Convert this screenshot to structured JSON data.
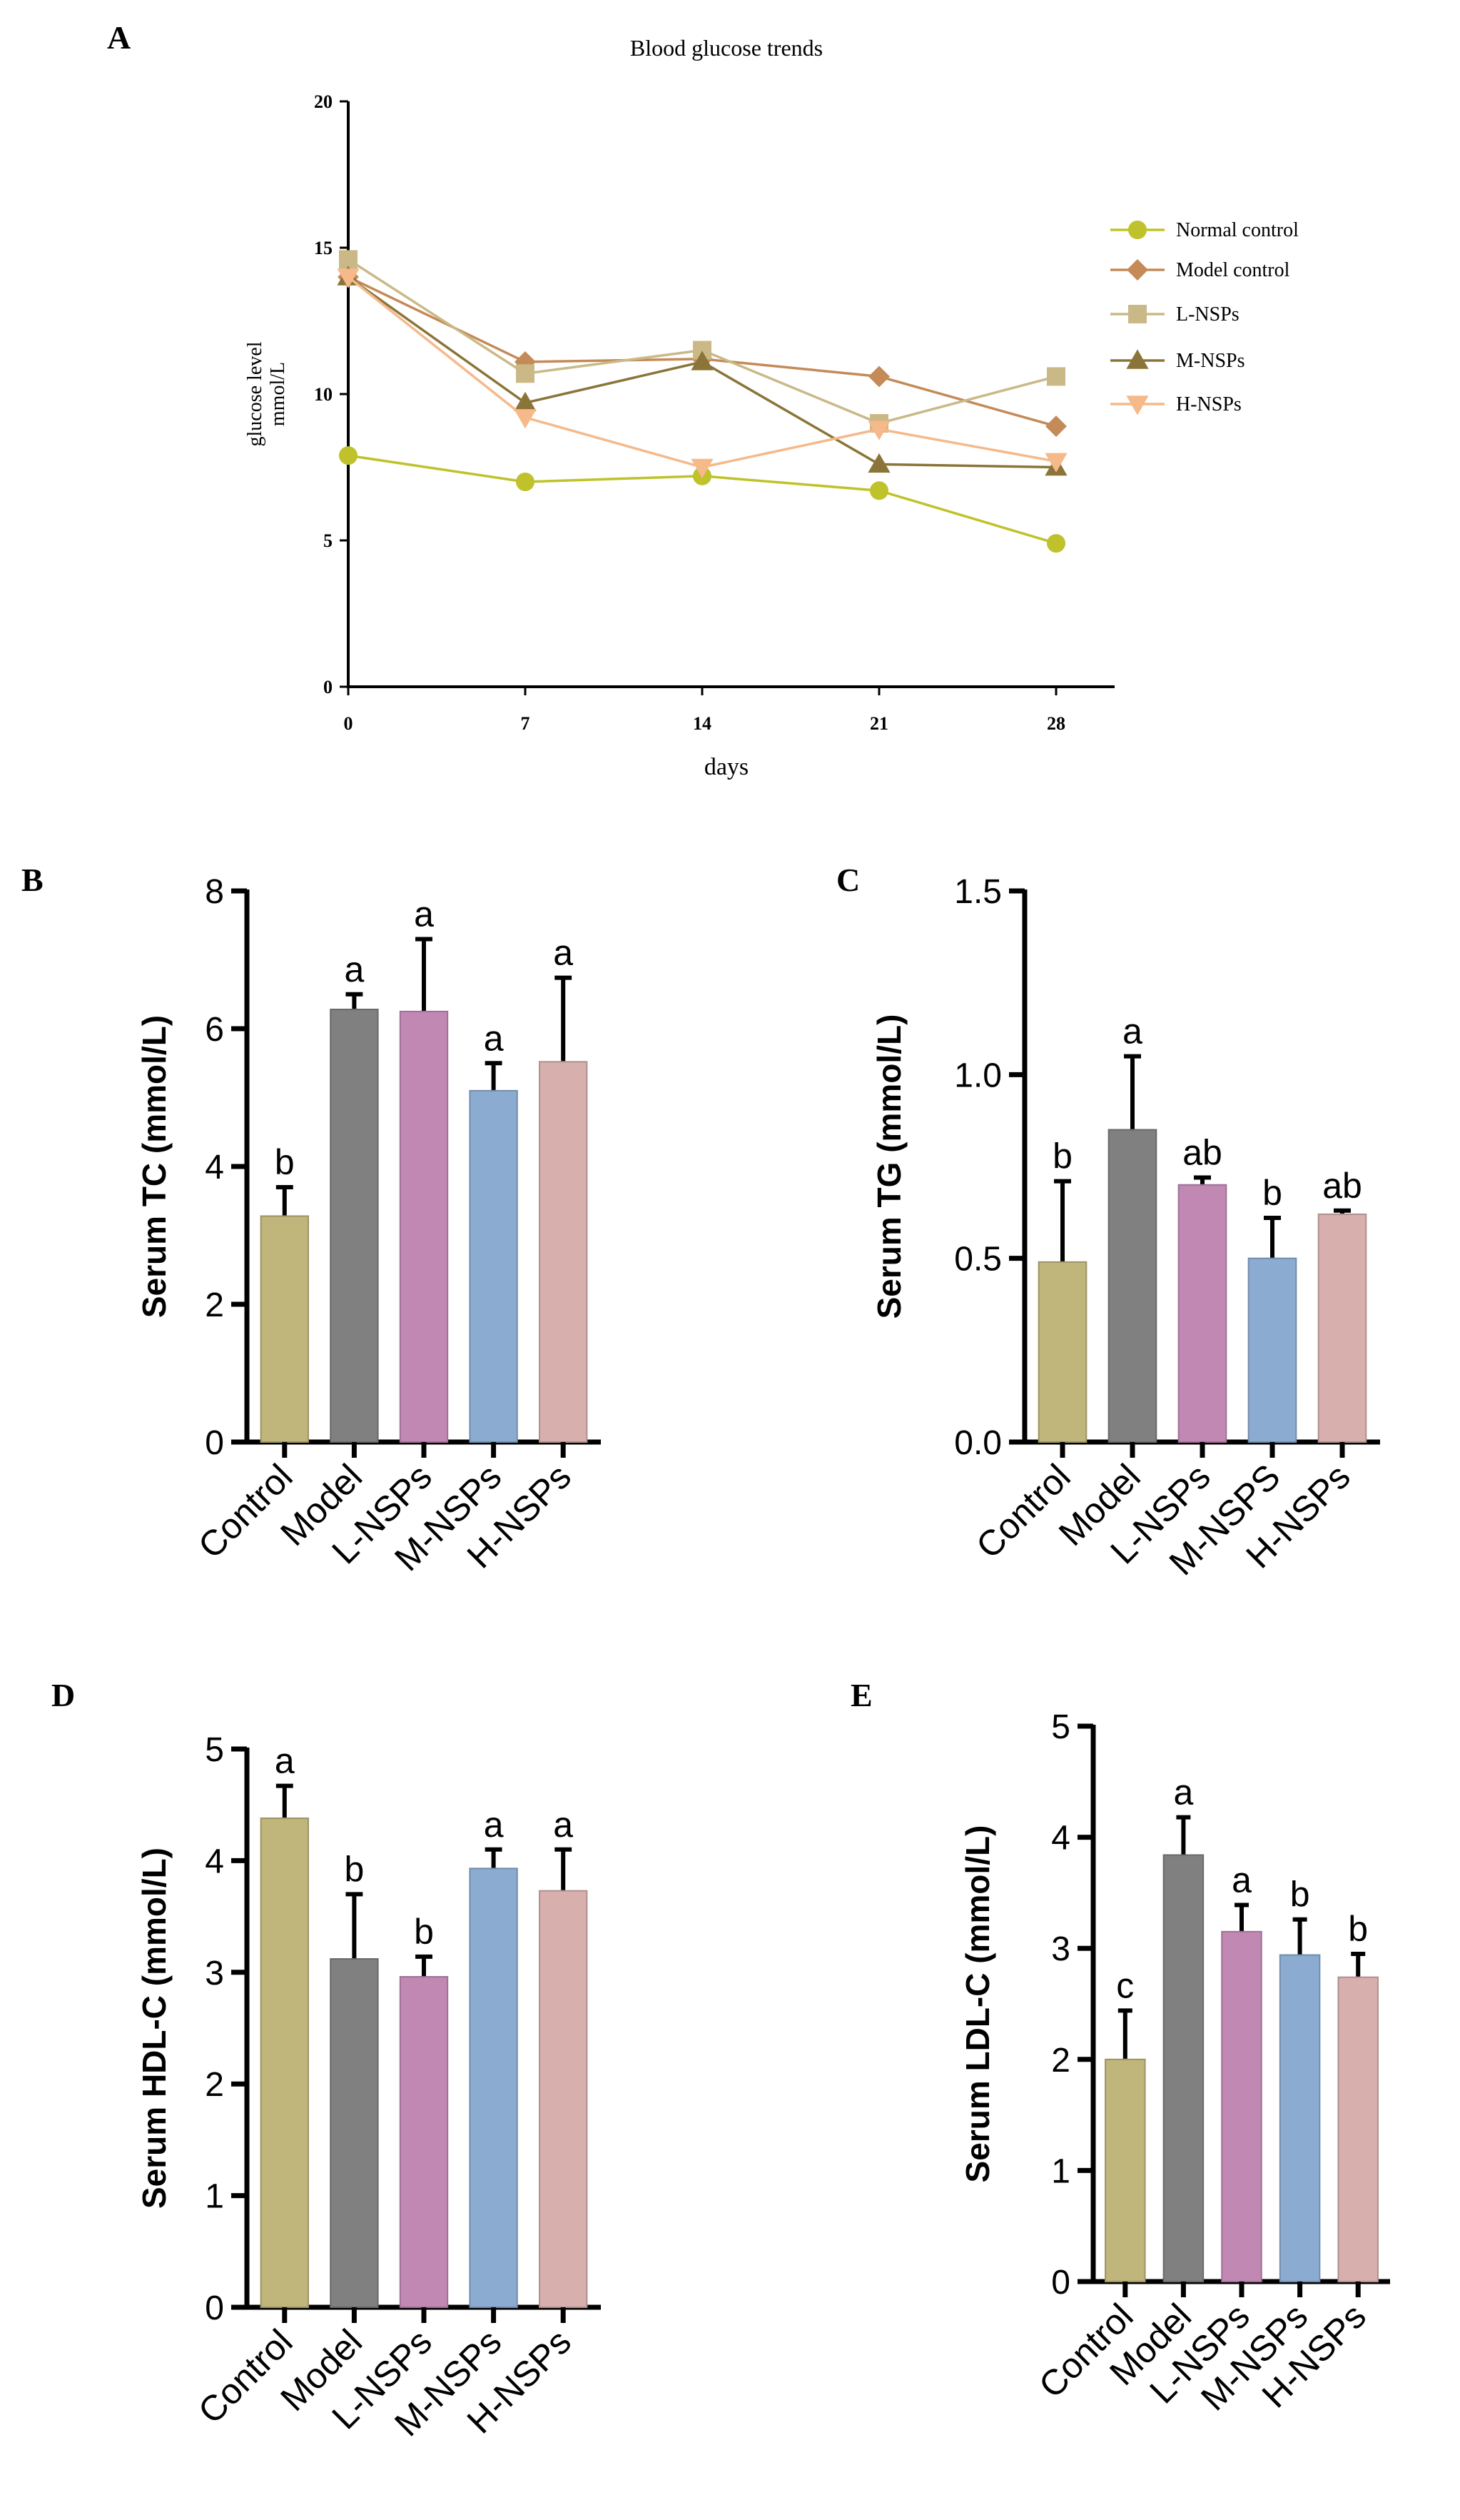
{
  "chart_data": [
    {
      "panel": "A",
      "type": "line",
      "title": "Blood glucose trends",
      "xlabel": "days",
      "ylabel_lines": [
        "glucose level",
        "mmol/L"
      ],
      "x": [
        0,
        7,
        14,
        21,
        28
      ],
      "x_tick_labels": [
        "0",
        "7",
        "14",
        "21",
        "28"
      ],
      "ylim": [
        0,
        20
      ],
      "y_ticks": [
        0,
        5,
        10,
        15,
        20
      ],
      "y_tick_labels": [
        "0",
        "5",
        "10",
        "15",
        "20"
      ],
      "legend_position": "right",
      "series": [
        {
          "name": "Normal control",
          "marker": "circle",
          "color": "#bfc22a",
          "values": [
            7.9,
            7.0,
            7.2,
            6.7,
            4.9
          ]
        },
        {
          "name": " Model control",
          "marker": "diamond",
          "color": "#c48a57",
          "values": [
            14.0,
            11.1,
            11.2,
            10.6,
            8.9
          ]
        },
        {
          "name": "L-NSPs",
          "marker": "square",
          "color": "#cab987",
          "values": [
            14.6,
            10.7,
            11.5,
            9.0,
            10.6
          ]
        },
        {
          "name": "M-NSPs",
          "marker": "triangle-up",
          "color": "#8a7438",
          "values": [
            14.0,
            9.7,
            11.1,
            7.6,
            7.5
          ]
        },
        {
          "name": "H-NSPs",
          "marker": "triangle-down",
          "color": "#f5b98a",
          "values": [
            14.0,
            9.2,
            7.5,
            8.8,
            7.7
          ]
        }
      ]
    },
    {
      "panel": "B",
      "type": "bar",
      "ylabel": "Serum TC (mmol/L)",
      "categories": [
        "Control",
        "Model",
        "L-NSPs",
        "M-NSPs",
        "H-NSPs"
      ],
      "values": [
        3.28,
        6.28,
        6.25,
        5.1,
        5.52
      ],
      "errors": [
        0.42,
        0.22,
        1.05,
        0.4,
        1.22
      ],
      "sig_labels": [
        "b",
        "a",
        "a",
        "a",
        "a"
      ],
      "ylim": [
        0,
        8
      ],
      "y_ticks": [
        0,
        2,
        4,
        6,
        8
      ],
      "y_tick_labels": [
        "0",
        "2",
        "4",
        "6",
        "8"
      ]
    },
    {
      "panel": "C",
      "type": "bar",
      "ylabel": "Serum TG (mmol/L)",
      "categories": [
        "Control",
        "Model",
        "L-NSPs",
        "M-NSPS",
        "H-NSPs"
      ],
      "values": [
        0.49,
        0.85,
        0.7,
        0.5,
        0.62
      ],
      "errors": [
        0.22,
        0.2,
        0.02,
        0.11,
        0.01
      ],
      "sig_labels": [
        "b",
        "a",
        "ab",
        "b",
        "ab"
      ],
      "ylim": [
        0,
        1.5
      ],
      "y_ticks": [
        0,
        0.5,
        1.0,
        1.5
      ],
      "y_tick_labels": [
        "0.0",
        "0.5",
        "1.0",
        "1.5"
      ]
    },
    {
      "panel": "D",
      "type": "bar",
      "ylabel": "Serum HDL-C (mmol/L)",
      "categories": [
        "Control",
        "Model",
        "L-NSPs",
        "M-NSPs",
        "H-NSPs"
      ],
      "values": [
        4.38,
        3.12,
        2.96,
        3.93,
        3.73
      ],
      "errors": [
        0.29,
        0.58,
        0.18,
        0.17,
        0.37
      ],
      "sig_labels": [
        "a",
        "b",
        "b",
        "a",
        "a"
      ],
      "ylim": [
        0,
        5
      ],
      "y_ticks": [
        0,
        1,
        2,
        3,
        4,
        5
      ],
      "y_tick_labels": [
        "0",
        "1",
        "2",
        "3",
        "4",
        "5"
      ]
    },
    {
      "panel": "E",
      "type": "bar",
      "ylabel": "Serum LDL-C (mmol/L)",
      "categories": [
        "Control",
        "Model",
        "L-NSPs",
        "M-NSPs",
        "H-NSPs"
      ],
      "values": [
        2.0,
        3.84,
        3.15,
        2.94,
        2.74
      ],
      "errors": [
        0.44,
        0.34,
        0.24,
        0.32,
        0.21
      ],
      "sig_labels": [
        "c",
        "a",
        "a",
        "b",
        "b"
      ],
      "ylim": [
        0,
        5
      ],
      "y_ticks": [
        0,
        1,
        2,
        3,
        4,
        5
      ],
      "y_tick_labels": [
        "0",
        "1",
        "2",
        "3",
        "4",
        "5"
      ]
    }
  ],
  "bar_colors": [
    "#c0b57a",
    "#808080",
    "#c288b4",
    "#8babd1",
    "#d7afad"
  ]
}
